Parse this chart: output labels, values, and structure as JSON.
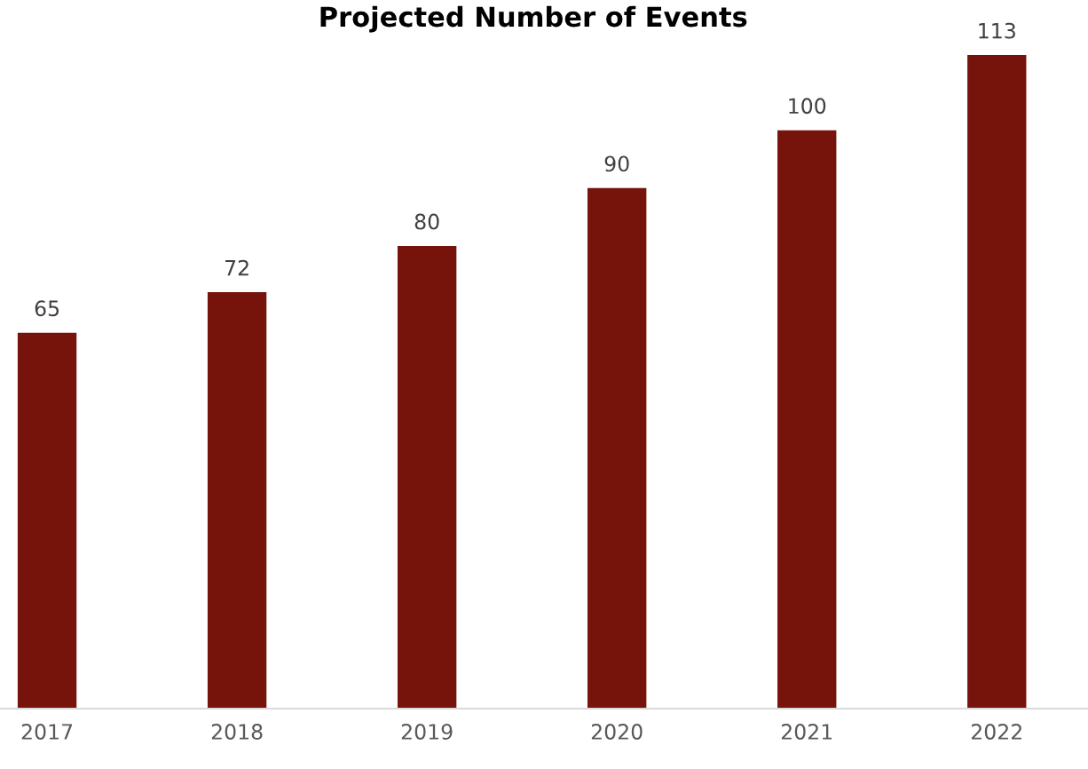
{
  "chart_data": {
    "type": "bar",
    "title": "Projected Number of Events",
    "categories": [
      "2017",
      "2018",
      "2019",
      "2020",
      "2021",
      "2022"
    ],
    "values": [
      65,
      72,
      80,
      90,
      100,
      113
    ],
    "color": "#76140c",
    "data_labels": true,
    "grid": false,
    "legend": false
  }
}
